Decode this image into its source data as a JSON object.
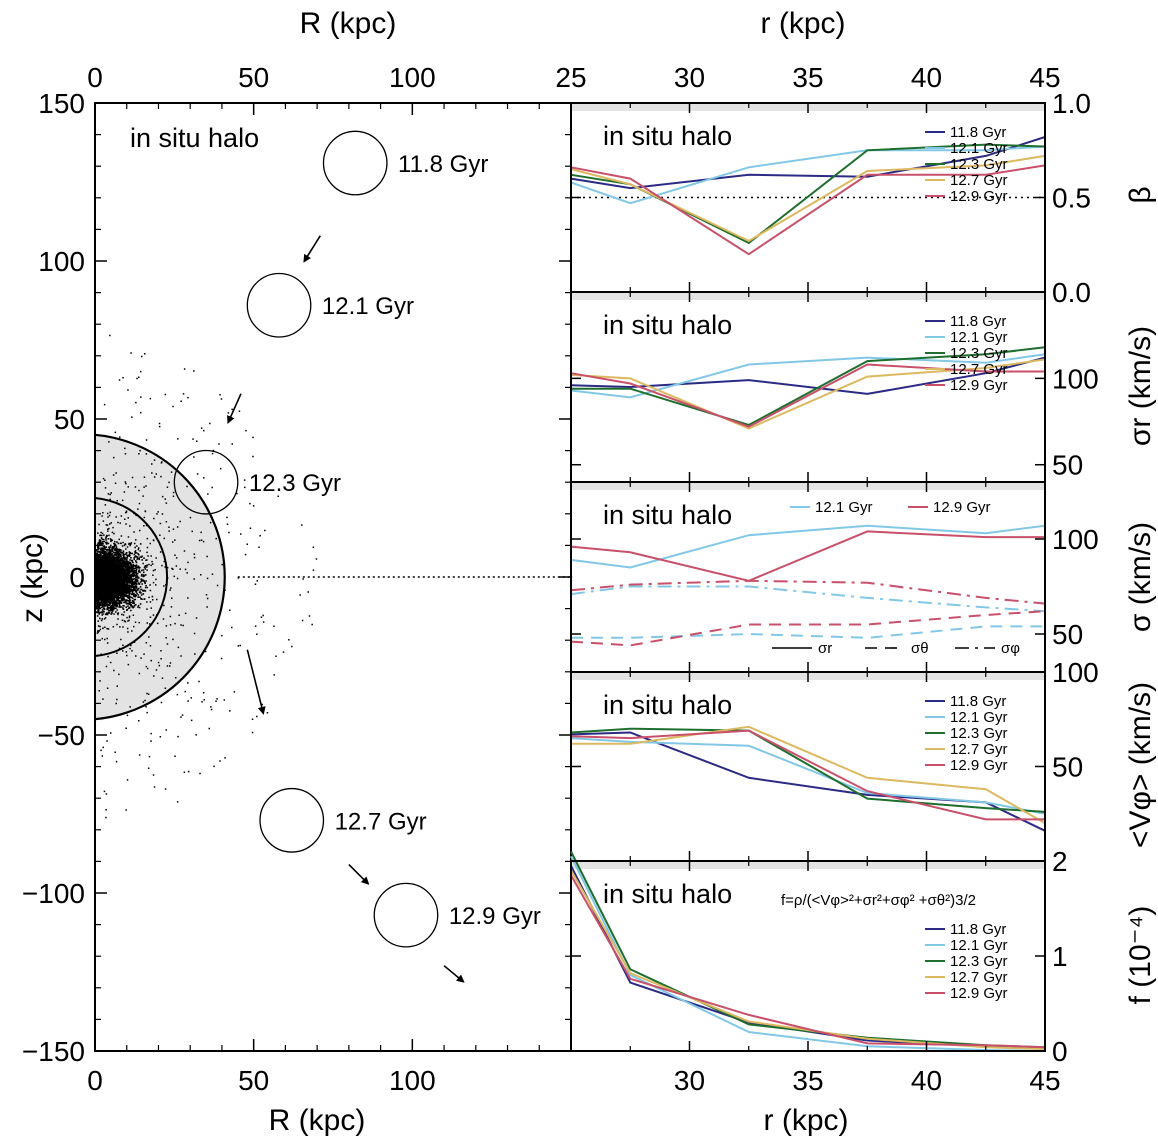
{
  "colors": {
    "c118": "#2b2a85",
    "c121": "#82c8e6",
    "c123": "#1e6e2e",
    "c127": "#dcb860",
    "c129": "#c8506a",
    "shade": "#e3e3e3"
  },
  "left_panel": {
    "label": "in situ halo",
    "x_label_top": "R (kpc)",
    "x_label_bottom": "R (kpc)",
    "y_label": "z (kpc)"
  },
  "right_panels": {
    "r_label_top": "r (kpc)",
    "r_label_bottom": "r (kpc)",
    "panel_label": "in situ halo",
    "beta_label": "β",
    "sigma_r_label": "σr (km/s)",
    "sigma_label": "σ (km/s)",
    "vphi_label": "<Vφ> (km/s)",
    "f_label": "f (10⁻⁴)",
    "f_formula": "f=ρ/(<Vφ>²+σr²+σφ² +σθ²)3/2",
    "style_legend": [
      "σr",
      "σθ",
      "σφ"
    ]
  },
  "chart_data": [
    {
      "type": "scatter",
      "panel": "left",
      "title": "in situ halo",
      "xlabel": "R (kpc)",
      "ylabel": "z (kpc)",
      "xlim": [
        0,
        150
      ],
      "ylim": [
        -150,
        150
      ],
      "xticks": [
        0,
        50,
        100
      ],
      "yticks": [
        150,
        100,
        50,
        0,
        -50,
        -100,
        -150
      ],
      "shells_kpc": [
        25,
        45
      ],
      "series": [
        {
          "name": "11.8 Gyr",
          "center": [
            82,
            131
          ],
          "radius": 10
        },
        {
          "name": "12.1 Gyr",
          "center": [
            58,
            86
          ],
          "radius": 10
        },
        {
          "name": "12.3 Gyr",
          "center": [
            35,
            30
          ],
          "radius": 10
        },
        {
          "name": "12.7 Gyr",
          "center": [
            62,
            -77
          ],
          "radius": 10
        },
        {
          "name": "12.9 Gyr",
          "center": [
            98,
            -107
          ],
          "radius": 10
        }
      ],
      "arrows": [
        {
          "from": [
            71,
            108
          ],
          "to": [
            66,
            100
          ]
        },
        {
          "from": [
            46,
            58
          ],
          "to": [
            42,
            49
          ]
        },
        {
          "from": [
            48,
            -23
          ],
          "to": [
            53,
            -43
          ]
        },
        {
          "from": [
            80,
            -91
          ],
          "to": [
            86,
            -97
          ]
        },
        {
          "from": [
            110,
            -123
          ],
          "to": [
            116,
            -128
          ]
        }
      ]
    },
    {
      "type": "line",
      "panel": "beta",
      "title": "in situ halo",
      "xlabel": "r (kpc)",
      "ylabel": "β",
      "xlim": [
        25,
        45
      ],
      "ylim": [
        0,
        1
      ],
      "yticks": [
        0.0,
        0.5,
        1.0
      ],
      "ytick_labels": [
        "0.0",
        "0.5",
        "1.0"
      ],
      "x": [
        25,
        27.5,
        32.5,
        37.5,
        42.5,
        45
      ],
      "reference_line": 0.5,
      "series": [
        {
          "name": "11.8 Gyr",
          "values": [
            0.6,
            0.55,
            0.62,
            0.61,
            0.72,
            0.82
          ]
        },
        {
          "name": "12.1 Gyr",
          "values": [
            0.58,
            0.47,
            0.66,
            0.75,
            0.75,
            0.77
          ]
        },
        {
          "name": "12.3 Gyr",
          "values": [
            0.62,
            0.57,
            0.26,
            0.75,
            0.78,
            0.77
          ]
        },
        {
          "name": "12.7 Gyr",
          "values": [
            0.65,
            0.57,
            0.27,
            0.64,
            0.67,
            0.72
          ]
        },
        {
          "name": "12.9 Gyr",
          "values": [
            0.66,
            0.6,
            0.2,
            0.62,
            0.62,
            0.67
          ]
        }
      ]
    },
    {
      "type": "line",
      "panel": "sigma_r",
      "title": "in situ halo",
      "xlabel": "r (kpc)",
      "ylabel": "σr (km/s)",
      "xlim": [
        25,
        45
      ],
      "ylim": [
        40,
        150
      ],
      "yticks": [
        100,
        50
      ],
      "ytick_labels": [
        "100",
        "50"
      ],
      "x": [
        25,
        27.5,
        32.5,
        37.5,
        42.5,
        45
      ],
      "series": [
        {
          "name": "11.8 Gyr",
          "values": [
            96,
            95,
            99,
            91,
            103,
            112
          ]
        },
        {
          "name": "12.1 Gyr",
          "values": [
            93,
            89,
            108,
            112,
            109,
            114
          ]
        },
        {
          "name": "12.3 Gyr",
          "values": [
            94,
            94,
            73,
            110,
            114,
            118
          ]
        },
        {
          "name": "12.7 Gyr",
          "values": [
            102,
            100,
            71,
            101,
            106,
            111
          ]
        },
        {
          "name": "12.9 Gyr",
          "values": [
            103,
            97,
            72,
            108,
            104,
            104
          ]
        }
      ]
    },
    {
      "type": "line",
      "panel": "sigma_components",
      "title": "in situ halo",
      "xlabel": "r (kpc)",
      "ylabel": "σ (km/s)",
      "xlim": [
        25,
        45
      ],
      "ylim": [
        30,
        130
      ],
      "yticks": [
        100,
        50
      ],
      "ytick_labels": [
        "100",
        "50"
      ],
      "x": [
        25,
        27.5,
        32.5,
        37.5,
        42.5,
        45
      ],
      "series": [
        {
          "name": "12.1 Gyr",
          "component": "σr",
          "values": [
            89,
            85,
            102,
            107,
            103,
            107
          ]
        },
        {
          "name": "12.1 Gyr",
          "component": "σθ",
          "values": [
            48,
            48,
            50,
            48,
            54,
            54
          ]
        },
        {
          "name": "12.1 Gyr",
          "component": "σφ",
          "values": [
            71,
            75,
            75,
            69,
            64,
            62
          ]
        },
        {
          "name": "12.9 Gyr",
          "component": "σr",
          "values": [
            96,
            93,
            78,
            104,
            101,
            101
          ]
        },
        {
          "name": "12.9 Gyr",
          "component": "σθ",
          "values": [
            46,
            44,
            55,
            55,
            60,
            62
          ]
        },
        {
          "name": "12.9 Gyr",
          "component": "σφ",
          "values": [
            73,
            76,
            78,
            77,
            69,
            66
          ]
        }
      ]
    },
    {
      "type": "line",
      "panel": "vphi",
      "title": "in situ halo",
      "xlabel": "r (kpc)",
      "ylabel": "<Vφ> (km/s)",
      "xlim": [
        25,
        45
      ],
      "ylim": [
        0,
        100
      ],
      "yticks": [
        100,
        50
      ],
      "ytick_labels": [
        "100",
        "50"
      ],
      "x": [
        25,
        27.5,
        32.5,
        37.5,
        42.5,
        45
      ],
      "series": [
        {
          "name": "11.8 Gyr",
          "values": [
            67,
            68,
            44,
            35,
            31,
            16
          ]
        },
        {
          "name": "12.1 Gyr",
          "values": [
            65,
            63,
            61,
            36,
            31,
            25
          ]
        },
        {
          "name": "12.3 Gyr",
          "values": [
            68,
            70,
            69,
            33,
            28,
            26
          ]
        },
        {
          "name": "12.7 Gyr",
          "values": [
            62,
            62,
            71,
            44,
            38,
            20
          ]
        },
        {
          "name": "12.9 Gyr",
          "values": [
            66,
            65,
            69,
            37,
            22,
            22
          ]
        }
      ]
    },
    {
      "type": "line",
      "panel": "f",
      "title": "in situ halo",
      "xlabel": "r (kpc)",
      "ylabel": "f (10⁻⁴)",
      "xlim": [
        25,
        45
      ],
      "ylim": [
        0,
        2
      ],
      "yticks": [
        2,
        1,
        0
      ],
      "ytick_labels": [
        "2",
        "1",
        "0"
      ],
      "x": [
        25,
        27.5,
        32.5,
        37.5,
        42.5,
        45
      ],
      "series": [
        {
          "name": "11.8 Gyr",
          "values": [
            1.95,
            0.72,
            0.3,
            0.11,
            0.05,
            0.03
          ]
        },
        {
          "name": "12.1 Gyr",
          "values": [
            2.05,
            0.8,
            0.2,
            0.05,
            0.01,
            0.0
          ]
        },
        {
          "name": "12.3 Gyr",
          "values": [
            2.1,
            0.86,
            0.28,
            0.14,
            0.06,
            0.04
          ]
        },
        {
          "name": "12.7 Gyr",
          "values": [
            1.9,
            0.82,
            0.31,
            0.13,
            0.04,
            0.02
          ]
        },
        {
          "name": "12.9 Gyr",
          "values": [
            1.85,
            0.76,
            0.38,
            0.08,
            0.06,
            0.04
          ]
        }
      ]
    }
  ]
}
